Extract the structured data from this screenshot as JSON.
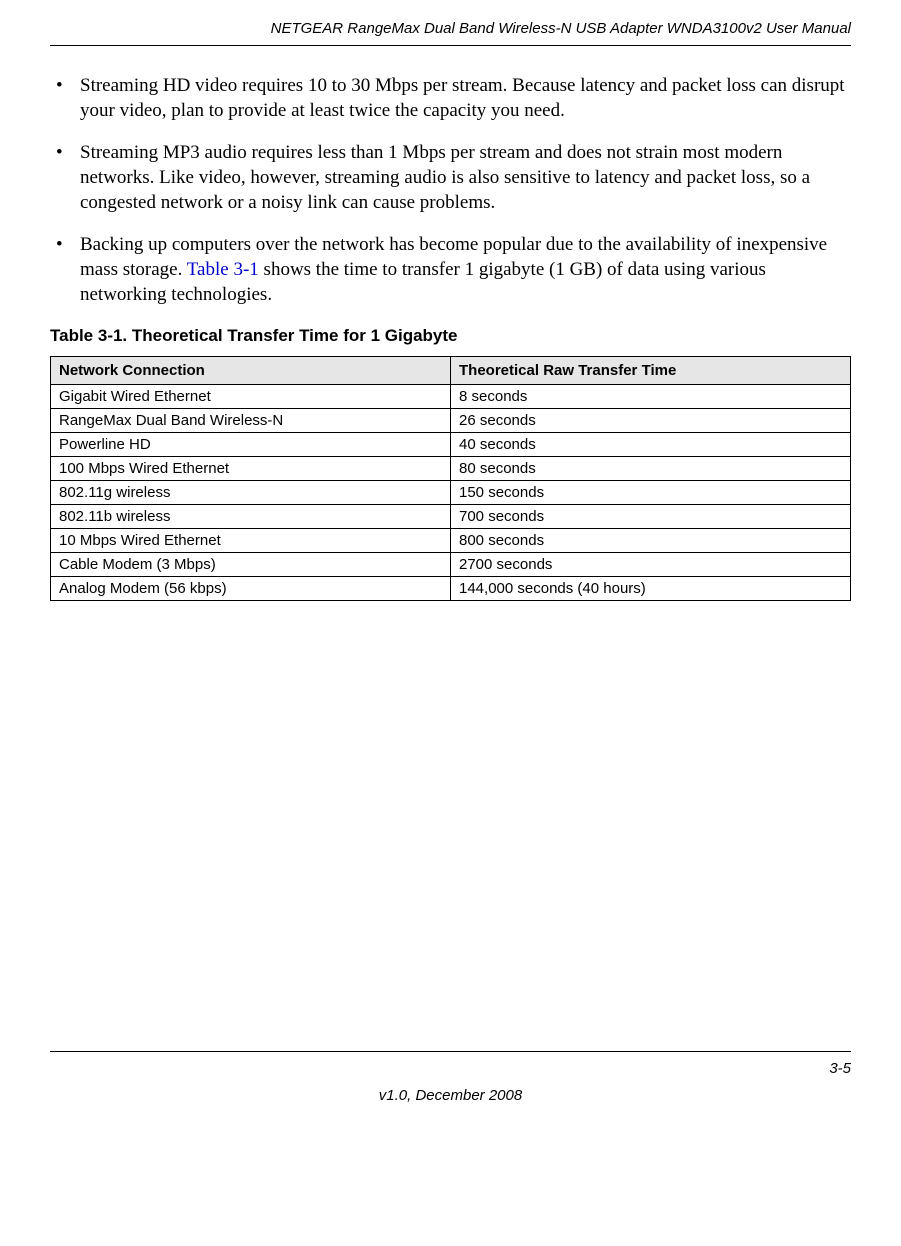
{
  "header": {
    "title": "NETGEAR RangeMax Dual Band Wireless-N USB Adapter WNDA3100v2 User Manual"
  },
  "bullets": {
    "item1": "Streaming HD video requires 10 to 30 Mbps per stream. Because latency and packet loss can disrupt your video, plan to provide at least twice the capacity you need.",
    "item2": "Streaming MP3 audio requires less than 1 Mbps per stream and does not strain most modern networks. Like video, however, streaming audio is also sensitive to latency and packet loss, so a congested network or a noisy link can cause problems.",
    "item3_pre": "Backing up computers over the network has become popular due to the availability of inexpensive mass storage. ",
    "item3_link": "Table 3-1",
    "item3_post": " shows the time to transfer 1 gigabyte (1 GB) of data using various networking technologies."
  },
  "table": {
    "caption": "Table 3-1.   Theoretical Transfer Time for 1 Gigabyte",
    "columns": {
      "col1": "Network Connection",
      "col2": "Theoretical Raw Transfer Time"
    },
    "rows": [
      {
        "c1": "Gigabit Wired Ethernet",
        "c2": "8 seconds"
      },
      {
        "c1": "RangeMax Dual Band Wireless-N",
        "c2": "26 seconds"
      },
      {
        "c1": "Powerline HD",
        "c2": "40 seconds"
      },
      {
        "c1": "100 Mbps Wired Ethernet",
        "c2": "80 seconds"
      },
      {
        "c1": "802.11g wireless",
        "c2": "150 seconds"
      },
      {
        "c1": "802.11b wireless",
        "c2": "700 seconds"
      },
      {
        "c1": "10 Mbps Wired Ethernet",
        "c2": "800 seconds"
      },
      {
        "c1": "Cable Modem (3 Mbps)",
        "c2": "2700 seconds"
      },
      {
        "c1": "Analog Modem (56 kbps)",
        "c2": "144,000 seconds (40 hours)"
      }
    ]
  },
  "footer": {
    "page_number": "3-5",
    "version": "v1.0, December 2008"
  }
}
